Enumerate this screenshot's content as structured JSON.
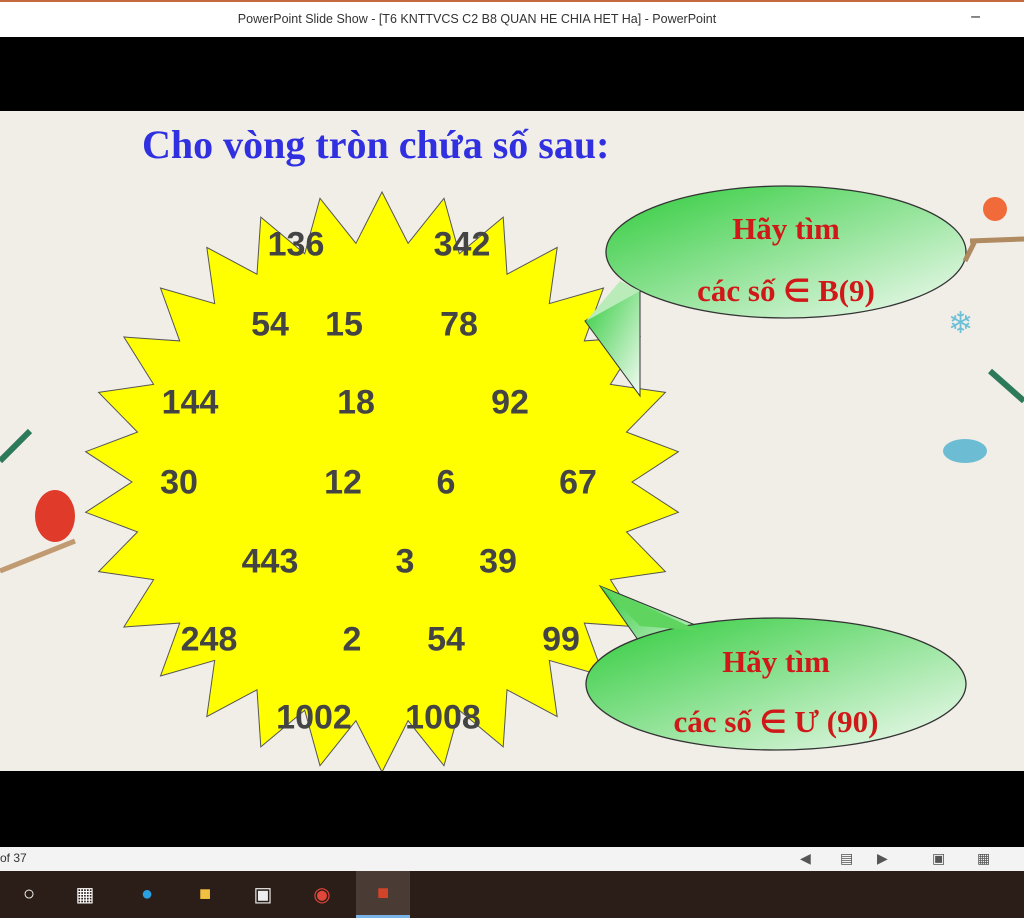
{
  "window": {
    "title": "PowerPoint Slide Show - [T6 KNTTVCS C2 B8 QUAN HE CHIA HET Ha] - PowerPoint",
    "minimize_icon": "minimize-icon"
  },
  "slide": {
    "heading": "Cho vòng tròn  chứa số sau:",
    "numbers": [
      "136",
      "342",
      "54",
      "15",
      "78",
      "144",
      "18",
      "92",
      "30",
      "12",
      "6",
      "67",
      "443",
      "3",
      "39",
      "248",
      "2",
      "54",
      "99",
      "1002",
      "1008"
    ],
    "bubble1": {
      "line1": "Hãy tìm",
      "line2": "các số ∈ B(9)"
    },
    "bubble2": {
      "line1": "Hãy tìm",
      "line2": "các số ∈ Ư (90)"
    },
    "colors": {
      "star": "#ffff00",
      "heading": "#3030e0",
      "bubble_text": "#d01818",
      "bubble": "#4fd34f"
    }
  },
  "statusbar": {
    "slide_count": "of 37",
    "icons": [
      "previous-icon",
      "slide-list-icon",
      "next-icon",
      "normal-view-icon",
      "slide-sorter-icon"
    ]
  },
  "taskbar": {
    "icons": [
      "cortana-icon",
      "task-view-icon",
      "edge-icon",
      "file-explorer-icon",
      "store-icon",
      "chrome-icon",
      "powerpoint-icon"
    ]
  }
}
